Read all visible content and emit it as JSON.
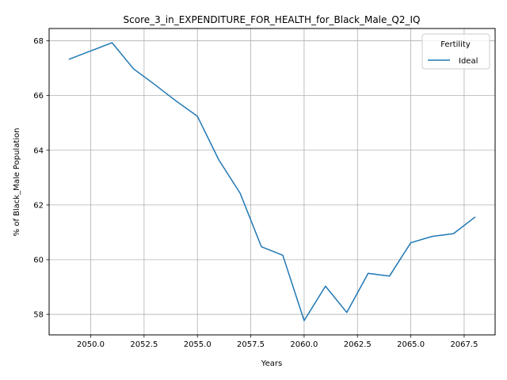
{
  "chart_data": {
    "type": "line",
    "title": "Score_3_in_EXPENDITURE_FOR_HEALTH_for_Black_Male_Q2_IQ",
    "xlabel": "Years",
    "ylabel": "% of Black_Male Population",
    "xlim": [
      2048.05,
      2068.95
    ],
    "ylim": [
      57.25,
      68.45
    ],
    "xticks": [
      2050.0,
      2052.5,
      2055.0,
      2057.5,
      2060.0,
      2062.5,
      2065.0,
      2067.5
    ],
    "xtick_labels": [
      "2050.0",
      "2052.5",
      "2055.0",
      "2057.5",
      "2060.0",
      "2062.5",
      "2065.0",
      "2067.5"
    ],
    "yticks": [
      58,
      60,
      62,
      64,
      66,
      68
    ],
    "ytick_labels": [
      "58",
      "60",
      "62",
      "64",
      "66",
      "68"
    ],
    "grid": true,
    "legend": {
      "title": "Fertility",
      "placement": "top-right"
    },
    "series": [
      {
        "name": "Ideal",
        "color": "#1f77b4",
        "x": [
          2049,
          2050,
          2051,
          2052,
          2053,
          2054,
          2055,
          2056,
          2057,
          2058,
          2059,
          2060,
          2061,
          2062,
          2063,
          2064,
          2065,
          2066,
          2067,
          2068
        ],
        "y": [
          67.33,
          67.63,
          67.93,
          66.98,
          66.4,
          65.8,
          65.24,
          63.65,
          62.43,
          60.47,
          60.16,
          57.77,
          59.03,
          58.07,
          59.5,
          59.4,
          60.62,
          60.85,
          60.95,
          61.55
        ]
      }
    ]
  }
}
